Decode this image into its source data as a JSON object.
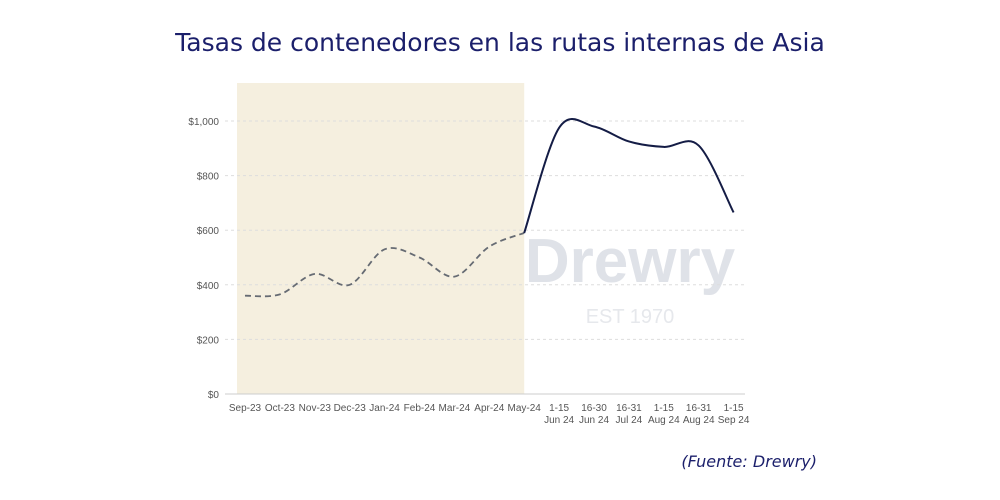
{
  "title": "Tasas de contenedores en las rutas internas de Asia",
  "source": "(Fuente: Drewry)",
  "watermark": {
    "name": "Drewry",
    "sub": "EST 1970"
  },
  "chart_data": {
    "type": "line",
    "title": "Tasas de contenedores en las rutas internas de Asia",
    "xlabel": "",
    "ylabel": "",
    "ylim": [
      0,
      1100
    ],
    "yticks": [
      0,
      200,
      400,
      600,
      800,
      1000
    ],
    "ytick_labels": [
      "$0",
      "$200",
      "$400",
      "$600",
      "$800",
      "$1,000"
    ],
    "grid": true,
    "categories": [
      [
        "Sep-23"
      ],
      [
        "Oct-23"
      ],
      [
        "Nov-23"
      ],
      [
        "Dec-23"
      ],
      [
        "Jan-24"
      ],
      [
        "Feb-24"
      ],
      [
        "Mar-24"
      ],
      [
        "Apr-24"
      ],
      [
        "May-24"
      ],
      [
        "1-15",
        "Jun 24"
      ],
      [
        "16-30",
        "Jun 24"
      ],
      [
        "16-31",
        "Jul 24"
      ],
      [
        "1-15",
        "Aug 24"
      ],
      [
        "16-31",
        "Aug 24"
      ],
      [
        "1-15",
        "Sep 24"
      ]
    ],
    "shaded_range": [
      "Sep-23",
      "May-24"
    ],
    "shade_color": "#f5efdf",
    "series": [
      {
        "style": "dashed",
        "color": "#666b73",
        "values": [
          360,
          365,
          440,
          400,
          530,
          500,
          430,
          540,
          590,
          null,
          null,
          null,
          null,
          null,
          null
        ]
      },
      {
        "style": "solid",
        "color": "#141c45",
        "values": [
          null,
          null,
          null,
          null,
          null,
          null,
          null,
          null,
          590,
          975,
          980,
          925,
          905,
          910,
          665
        ]
      }
    ]
  }
}
